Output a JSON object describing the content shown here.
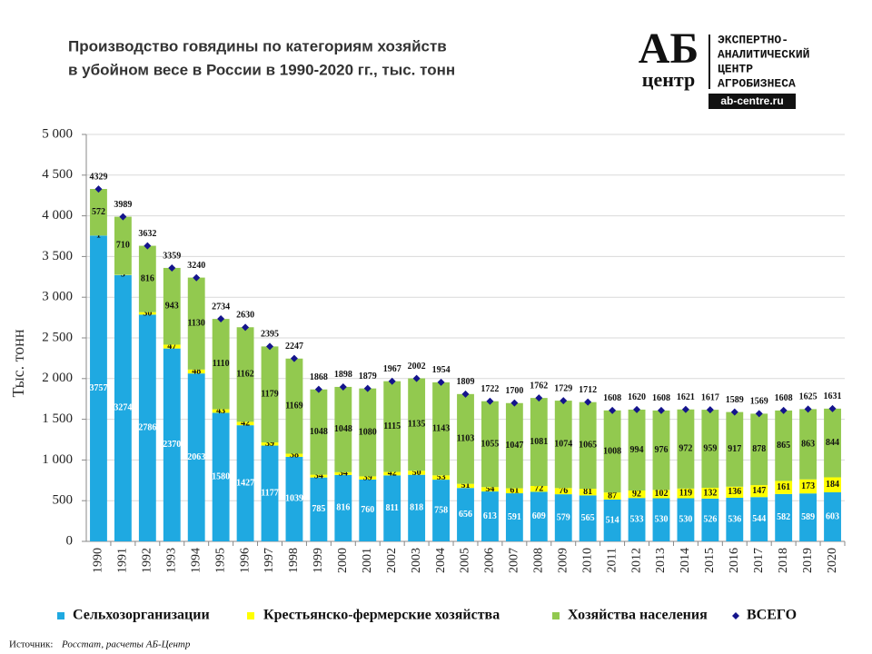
{
  "chart_data": {
    "type": "bar",
    "stacked": true,
    "title": [
      "Производство  говядины  по категориям хозяйств",
      "в убойном весе в России в 1990-2020 гг., тыс. тонн"
    ],
    "y_label": "Тыс. тонн",
    "categories": [
      "1990",
      "1991",
      "1992",
      "1993",
      "1994",
      "1995",
      "1996",
      "1997",
      "1998",
      "1999",
      "2000",
      "2001",
      "2002",
      "2003",
      "2004",
      "2005",
      "2006",
      "2007",
      "2008",
      "2009",
      "2010",
      "2011",
      "2012",
      "2013",
      "2014",
      "2015",
      "2016",
      "2017",
      "2018",
      "2019",
      "2020"
    ],
    "series": [
      {
        "name": "Сельхозорганизации",
        "color": "#1fa9e1",
        "values": [
          3757,
          3274,
          2786,
          2370,
          2063,
          1580,
          1427,
          1177,
          1039,
          785,
          816,
          760,
          811,
          818,
          758,
          656,
          613,
          591,
          609,
          579,
          565,
          514,
          533,
          530,
          530,
          526,
          536,
          544,
          582,
          589,
          603
        ]
      },
      {
        "name": "Крестьянско-фермерские хозяйства",
        "color": "#ffff00",
        "values": [
          1,
          5,
          30,
          47,
          48,
          43,
          42,
          39,
          38,
          34,
          34,
          39,
          42,
          50,
          53,
          51,
          54,
          61,
          72,
          76,
          81,
          87,
          92,
          102,
          119,
          132,
          136,
          147,
          161,
          173,
          184
        ]
      },
      {
        "name": "Хозяйства населения",
        "color": "#92c94f",
        "values": [
          572,
          710,
          816,
          943,
          1130,
          1110,
          1162,
          1179,
          1169,
          1048,
          1048,
          1080,
          1115,
          1135,
          1143,
          1103,
          1055,
          1047,
          1081,
          1074,
          1065,
          1008,
          994,
          976,
          972,
          959,
          917,
          878,
          865,
          863,
          844
        ]
      },
      {
        "name": "ВСЕГО",
        "color": "#14148c",
        "type": "marker",
        "values": [
          4329,
          3989,
          3632,
          3359,
          3240,
          2734,
          2630,
          2395,
          2247,
          1868,
          1898,
          1879,
          1967,
          2002,
          1954,
          1809,
          1722,
          1700,
          1762,
          1729,
          1712,
          1608,
          1620,
          1608,
          1621,
          1617,
          1589,
          1569,
          1608,
          1625,
          1631
        ]
      }
    ],
    "ylim": [
      0,
      5000
    ],
    "yticks": [
      0,
      500,
      {
        "value": 1000,
        "label": "1 000"
      },
      {
        "value": 1500,
        "label": "1 500"
      },
      {
        "value": 2000,
        "label": "2 000"
      },
      {
        "value": 2500,
        "label": "2 500"
      },
      {
        "value": 3000,
        "label": "3 000"
      },
      {
        "value": 3500,
        "label": "3 500"
      },
      {
        "value": 4000,
        "label": "4 000"
      },
      {
        "value": 4500,
        "label": "4 500"
      },
      {
        "value": 5000,
        "label": "5 000"
      }
    ],
    "grid": true,
    "legend": "bottom",
    "logo": {
      "big": "АБ",
      "small": "центр",
      "lines": [
        "ЭКСПЕРТНО-",
        "АНАЛИТИЧЕСКИЙ",
        "ЦЕНТР",
        "АГРОБИЗНЕСА"
      ],
      "url": "ab-centre.ru"
    },
    "source": {
      "label": "Источник:",
      "text": "Росстат, расчеты АБ-Центр"
    }
  }
}
